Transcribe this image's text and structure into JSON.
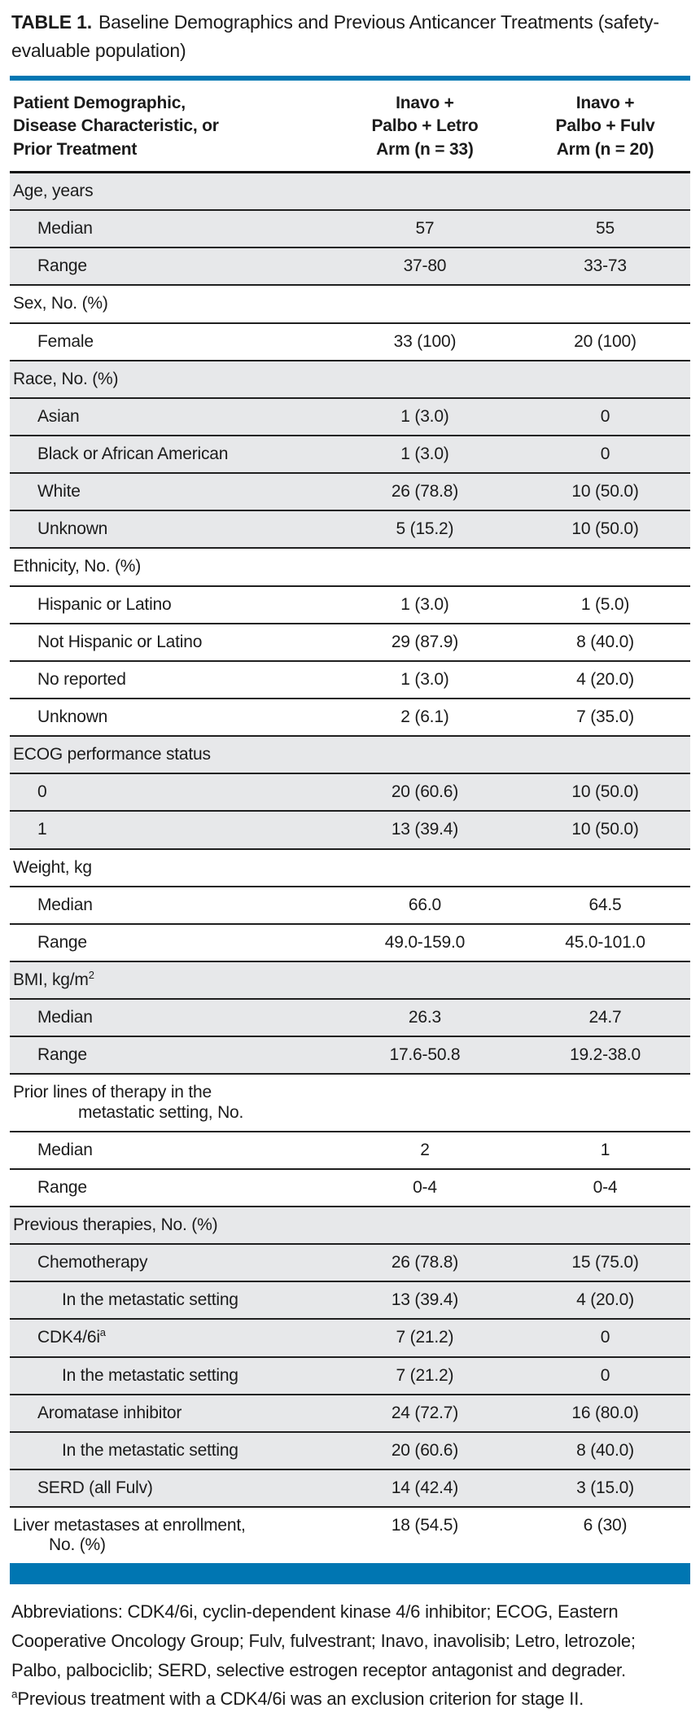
{
  "title": {
    "label": "TABLE 1.",
    "text": "Baseline Demographics and Previous Anticancer Treatments (safety-evaluable population)"
  },
  "colors": {
    "accent_blue": "#0076b2",
    "row_shade": "#e7e8ea"
  },
  "table": {
    "columns": [
      {
        "lines": [
          "Patient Demographic,",
          "Disease Characteristic, or",
          "Prior Treatment"
        ]
      },
      {
        "lines": [
          "Inavo +",
          "Palbo + Letro",
          "Arm (n = 33)"
        ]
      },
      {
        "lines": [
          "Inavo +",
          "Palbo + Fulv",
          "Arm (n = 20)"
        ]
      }
    ],
    "rows": [
      {
        "label": "Age, years",
        "indent": 0,
        "shaded": true,
        "values": [
          "",
          ""
        ]
      },
      {
        "label": "Median",
        "indent": 1,
        "shaded": true,
        "values": [
          "57",
          "55"
        ]
      },
      {
        "label": "Range",
        "indent": 1,
        "shaded": true,
        "values": [
          "37-80",
          "33-73"
        ]
      },
      {
        "label": "Sex, No. (%)",
        "indent": 0,
        "shaded": false,
        "values": [
          "",
          ""
        ]
      },
      {
        "label": "Female",
        "indent": 1,
        "shaded": false,
        "values": [
          "33 (100)",
          "20 (100)"
        ]
      },
      {
        "label": "Race, No. (%)",
        "indent": 0,
        "shaded": true,
        "values": [
          "",
          ""
        ]
      },
      {
        "label": "Asian",
        "indent": 1,
        "shaded": true,
        "values": [
          "1 (3.0)",
          "0"
        ]
      },
      {
        "label": "Black or African American",
        "indent": 1,
        "shaded": true,
        "values": [
          "1 (3.0)",
          "0"
        ]
      },
      {
        "label": "White",
        "indent": 1,
        "shaded": true,
        "values": [
          "26 (78.8)",
          "10 (50.0)"
        ]
      },
      {
        "label": "Unknown",
        "indent": 1,
        "shaded": true,
        "values": [
          "5 (15.2)",
          "10 (50.0)"
        ]
      },
      {
        "label": "Ethnicity, No. (%)",
        "indent": 0,
        "shaded": false,
        "values": [
          "",
          ""
        ]
      },
      {
        "label": "Hispanic or Latino",
        "indent": 1,
        "shaded": false,
        "values": [
          "1 (3.0)",
          "1 (5.0)"
        ]
      },
      {
        "label": "Not Hispanic or Latino",
        "indent": 1,
        "shaded": false,
        "values": [
          "29 (87.9)",
          "8 (40.0)"
        ]
      },
      {
        "label": "No reported",
        "indent": 1,
        "shaded": false,
        "values": [
          "1 (3.0)",
          "4 (20.0)"
        ]
      },
      {
        "label": "Unknown",
        "indent": 1,
        "shaded": false,
        "values": [
          "2 (6.1)",
          "7 (35.0)"
        ]
      },
      {
        "label": "ECOG performance status",
        "indent": 0,
        "shaded": true,
        "values": [
          "",
          ""
        ]
      },
      {
        "label": "0",
        "indent": 1,
        "shaded": true,
        "values": [
          "20 (60.6)",
          "10 (50.0)"
        ]
      },
      {
        "label": "1",
        "indent": 1,
        "shaded": true,
        "values": [
          "13 (39.4)",
          "10 (50.0)"
        ]
      },
      {
        "label": "Weight, kg",
        "indent": 0,
        "shaded": false,
        "values": [
          "",
          ""
        ]
      },
      {
        "label": "Median",
        "indent": 1,
        "shaded": false,
        "values": [
          "66.0",
          "64.5"
        ]
      },
      {
        "label": "Range",
        "indent": 1,
        "shaded": false,
        "values": [
          "49.0-159.0",
          "45.0-101.0"
        ]
      },
      {
        "label": "BMI, kg/m",
        "label_sup": "2",
        "indent": 0,
        "shaded": true,
        "values": [
          "",
          ""
        ]
      },
      {
        "label": "Median",
        "indent": 1,
        "shaded": true,
        "values": [
          "26.3",
          "24.7"
        ]
      },
      {
        "label": "Range",
        "indent": 1,
        "shaded": true,
        "values": [
          "17.6-50.8",
          "19.2-38.0"
        ]
      },
      {
        "lines": [
          "Prior lines of therapy in the",
          "metastatic setting, No."
        ],
        "cont_indent": 80,
        "indent": 0,
        "shaded": false,
        "values": [
          "",
          ""
        ]
      },
      {
        "label": "Median",
        "indent": 1,
        "shaded": false,
        "values": [
          "2",
          "1"
        ]
      },
      {
        "label": "Range",
        "indent": 1,
        "shaded": false,
        "values": [
          "0-4",
          "0-4"
        ]
      },
      {
        "label": "Previous therapies, No. (%)",
        "indent": 0,
        "shaded": true,
        "values": [
          "",
          ""
        ]
      },
      {
        "label": "Chemotherapy",
        "indent": 1,
        "shaded": true,
        "values": [
          "26 (78.8)",
          "15 (75.0)"
        ]
      },
      {
        "label": "In the metastatic setting",
        "indent": 2,
        "shaded": true,
        "values": [
          "13 (39.4)",
          "4 (20.0)"
        ]
      },
      {
        "label": "CDK4/6i",
        "label_sup": "a",
        "indent": 1,
        "shaded": true,
        "values": [
          "7 (21.2)",
          "0"
        ]
      },
      {
        "label": "In the metastatic setting",
        "indent": 2,
        "shaded": true,
        "values": [
          "7 (21.2)",
          "0"
        ]
      },
      {
        "label": "Aromatase inhibitor",
        "indent": 1,
        "shaded": true,
        "values": [
          "24 (72.7)",
          "16 (80.0)"
        ]
      },
      {
        "label": "In the metastatic setting",
        "indent": 2,
        "shaded": true,
        "values": [
          "20 (60.6)",
          "8 (40.0)"
        ]
      },
      {
        "label": "SERD (all Fulv)",
        "indent": 1,
        "shaded": true,
        "values": [
          "14 (42.4)",
          "3 (15.0)"
        ]
      },
      {
        "lines": [
          "Liver metastases at enrollment,",
          "No. (%)"
        ],
        "cont_indent": 44,
        "indent": 0,
        "shaded": false,
        "values": [
          "18 (54.5)",
          "6 (30)"
        ],
        "last": true
      }
    ]
  },
  "footnotes": {
    "abbreviations": "Abbreviations: CDK4/6i, cyclin-dependent kinase 4/6 inhibitor; ECOG, Eastern Cooperative Oncology Group; Fulv, fulvestrant; Inavo, inavolisib; Letro, letrozole; Palbo, palbociclib; SERD, selective estrogen receptor antagonist and degrader.",
    "a_marker": "a",
    "a_text": "Previous treatment with a CDK4/6i was an exclusion criterion for stage II."
  }
}
